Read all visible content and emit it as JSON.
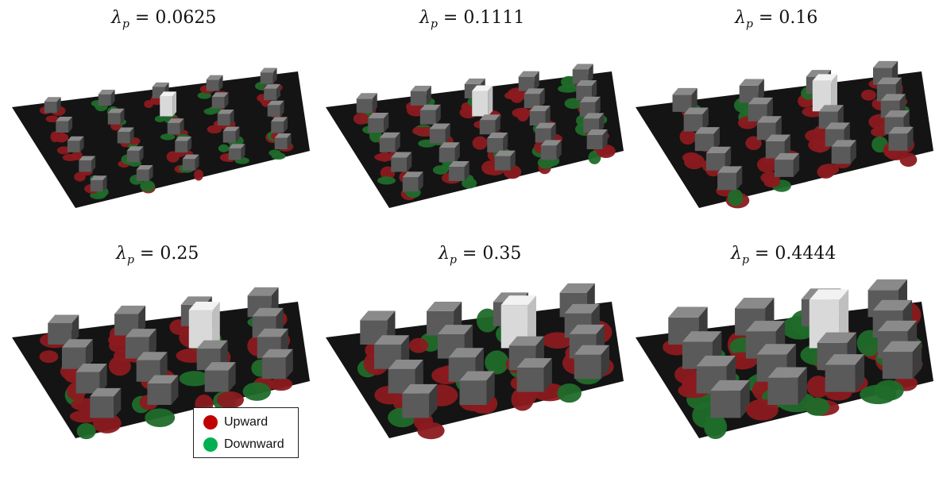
{
  "panels": [
    {
      "symbol": "λ",
      "subscript": "p",
      "equals": "=",
      "value": "0.0625"
    },
    {
      "symbol": "λ",
      "subscript": "p",
      "equals": "=",
      "value": "0.1111"
    },
    {
      "symbol": "λ",
      "subscript": "p",
      "equals": "=",
      "value": "0.16"
    },
    {
      "symbol": "λ",
      "subscript": "p",
      "equals": "=",
      "value": "0.25"
    },
    {
      "symbol": "λ",
      "subscript": "p",
      "equals": "=",
      "value": "0.35"
    },
    {
      "symbol": "λ",
      "subscript": "p",
      "equals": "=",
      "value": "0.4444"
    }
  ],
  "legend": {
    "upward": {
      "label": "Upward",
      "color": "#c00000"
    },
    "downward": {
      "label": "Downward",
      "color": "#00b050"
    }
  },
  "colors": {
    "ground": "#141414",
    "block_top": "#8a8a8a",
    "block_side": "#5a5a5a",
    "tall_block": "#f2f2f2",
    "upward_blob": "#8b1a1f",
    "downward_blob": "#1f6b2a"
  }
}
